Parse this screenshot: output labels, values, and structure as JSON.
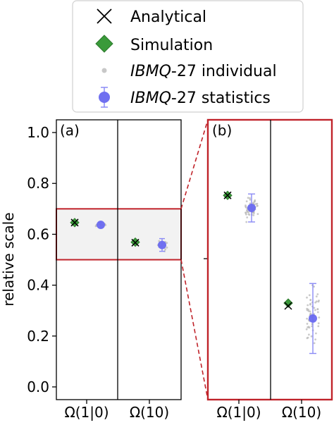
{
  "legend": {
    "placement": "top-center",
    "entries": [
      {
        "prefix": "",
        "label": "Analytical",
        "marker": "x",
        "color": "#000000"
      },
      {
        "prefix": "",
        "label": "Simulation",
        "marker": "diamond",
        "color": "#3a9a3a"
      },
      {
        "prefix": "IBMQ",
        "label": "-27 individual",
        "marker": "small-dot",
        "color": "#b8b8b8"
      },
      {
        "prefix": "IBMQ",
        "label": "-27 statistics",
        "marker": "errorbar-dot",
        "color": "#6a6af0"
      }
    ]
  },
  "colors": {
    "highlight_box": "#c0232a",
    "analytical": "#000000",
    "simulation": "#3a9a3a",
    "individual": "#b8b8b8",
    "statistics": "#6a6af0"
  },
  "chart_data": [
    {
      "type": "scatter",
      "panel_label": "(a)",
      "categories": [
        "Ω(1|0)",
        "Ω(10)"
      ],
      "ylabel": "relative scale",
      "ylim": [
        -0.05,
        1.05
      ],
      "yticks": [
        "0.0",
        "0.2",
        "0.4",
        "0.6",
        "0.8",
        "1.0"
      ],
      "highlight_range": [
        0.5,
        0.7
      ],
      "series": [
        {
          "name": "Analytical",
          "values": [
            0.646,
            0.567
          ]
        },
        {
          "name": "Simulation",
          "values": [
            0.646,
            0.569
          ]
        },
        {
          "name": "IBMQ-27 statistics",
          "values": [
            0.637,
            0.558
          ],
          "error": [
            0.01,
            0.025
          ]
        }
      ]
    },
    {
      "type": "scatter",
      "panel_label": "(b)",
      "categories": [
        "Ω(1|0)",
        "Ω(10)"
      ],
      "ylim": [
        0.5,
        0.7
      ],
      "series": [
        {
          "name": "Analytical",
          "values": [
            0.646,
            0.567
          ]
        },
        {
          "name": "Simulation",
          "values": [
            0.646,
            0.569
          ]
        },
        {
          "name": "IBMQ-27 statistics",
          "values": [
            0.637,
            0.558
          ],
          "error": [
            0.01,
            0.025
          ]
        }
      ]
    }
  ]
}
